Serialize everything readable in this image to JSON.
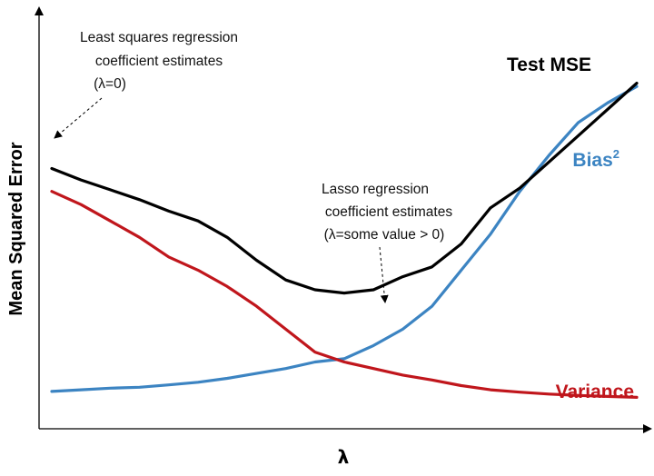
{
  "chart_data": {
    "type": "line",
    "title": "",
    "xlabel": "λ",
    "ylabel": "Mean Squared Error",
    "xlim": [
      0,
      100
    ],
    "ylim": [
      0,
      100
    ],
    "grid": false,
    "x": [
      0,
      5,
      10,
      15,
      20,
      25,
      30,
      35,
      40,
      45,
      50,
      55,
      60,
      65,
      70,
      75,
      80,
      85,
      90,
      95,
      100
    ],
    "series": [
      {
        "name": "Test MSE",
        "color": "#000000",
        "values": [
          73,
          69.5,
          66.5,
          63.5,
          60,
          57,
          52,
          45,
          39,
          36,
          35,
          36,
          40,
          43,
          50,
          61,
          67,
          75,
          83,
          91,
          99
        ]
      },
      {
        "name": "Bias",
        "name_sup": "2",
        "color": "#3c84c2",
        "values": [
          5,
          5.5,
          6,
          6.3,
          7,
          7.8,
          9,
          10.5,
          12,
          14,
          15,
          19,
          24,
          31,
          42,
          53,
          66,
          77,
          87,
          93,
          98
        ]
      },
      {
        "name": "Variance",
        "color": "#c0161c",
        "values": [
          66,
          62,
          57,
          52,
          46,
          42,
          37,
          31,
          24,
          17,
          14,
          12,
          10,
          8.5,
          6.8,
          5.5,
          4.8,
          4.2,
          3.8,
          3.5,
          3.2
        ]
      }
    ],
    "annotations": [
      {
        "lines": [
          "Least squares regression",
          "coefficient estimates",
          "(λ=0)"
        ],
        "target_x": 0,
        "target_y": 73
      },
      {
        "lines": [
          "Lasso regression",
          "coefficient estimates",
          "(λ=some value > 0)"
        ],
        "target_x": 51,
        "target_y": 35
      }
    ]
  }
}
